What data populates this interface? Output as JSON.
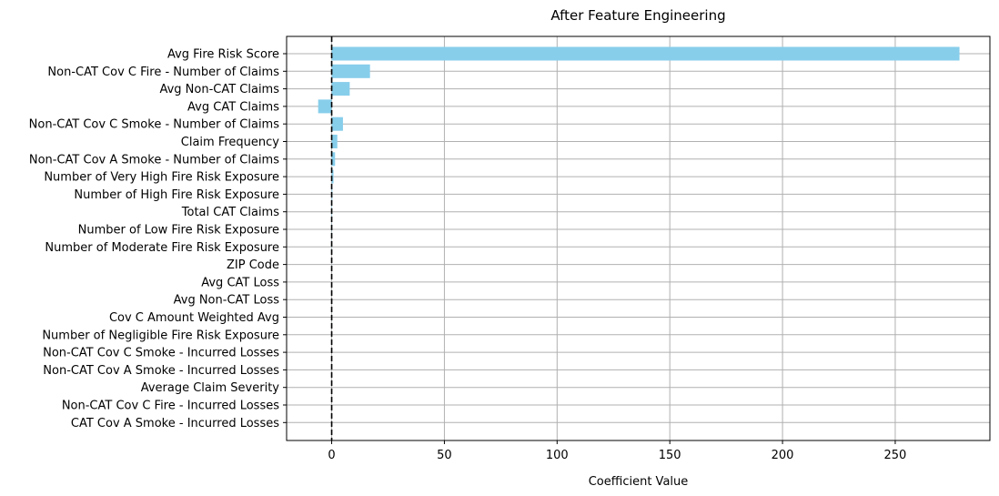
{
  "chart_data": {
    "type": "bar",
    "orientation": "horizontal",
    "title": "After Feature Engineering",
    "xlabel": "Coefficient Value",
    "ylabel": "",
    "xlim": [
      -20,
      292
    ],
    "xticks": [
      0,
      50,
      100,
      150,
      200,
      250
    ],
    "grid": true,
    "reference_line": {
      "x": 0,
      "style": "dashed",
      "color": "#000000"
    },
    "bar_color": "#87ceeb",
    "categories": [
      "Avg Fire Risk Score",
      "Non-CAT Cov C Fire - Number of Claims",
      "Avg Non-CAT Claims",
      "Avg CAT Claims",
      "Non-CAT Cov C Smoke - Number of Claims",
      "Claim Frequency",
      "Non-CAT Cov A Smoke - Number of Claims",
      "Number of Very High Fire Risk Exposure",
      "Number of High Fire Risk Exposure",
      "Total CAT Claims",
      "Number of Low Fire Risk Exposure",
      "Number of Moderate Fire Risk Exposure",
      "ZIP Code",
      "Avg CAT Loss",
      "Avg Non-CAT Loss",
      "Cov C Amount Weighted Avg",
      "Number of Negligible Fire Risk Exposure",
      "Non-CAT Cov C Smoke - Incurred Losses",
      "Non-CAT Cov A Smoke - Incurred Losses",
      "Average Claim Severity",
      "Non-CAT Cov C Fire - Incurred Losses",
      "CAT Cov A Smoke - Incurred Losses"
    ],
    "values": [
      278.5,
      17,
      8,
      -6,
      5,
      2.5,
      1.5,
      0.8,
      0.3,
      0.2,
      0.1,
      0.1,
      0.05,
      0.02,
      0.01,
      0.01,
      0.01,
      0.005,
      0.003,
      0.002,
      0.001,
      0.0005
    ]
  }
}
